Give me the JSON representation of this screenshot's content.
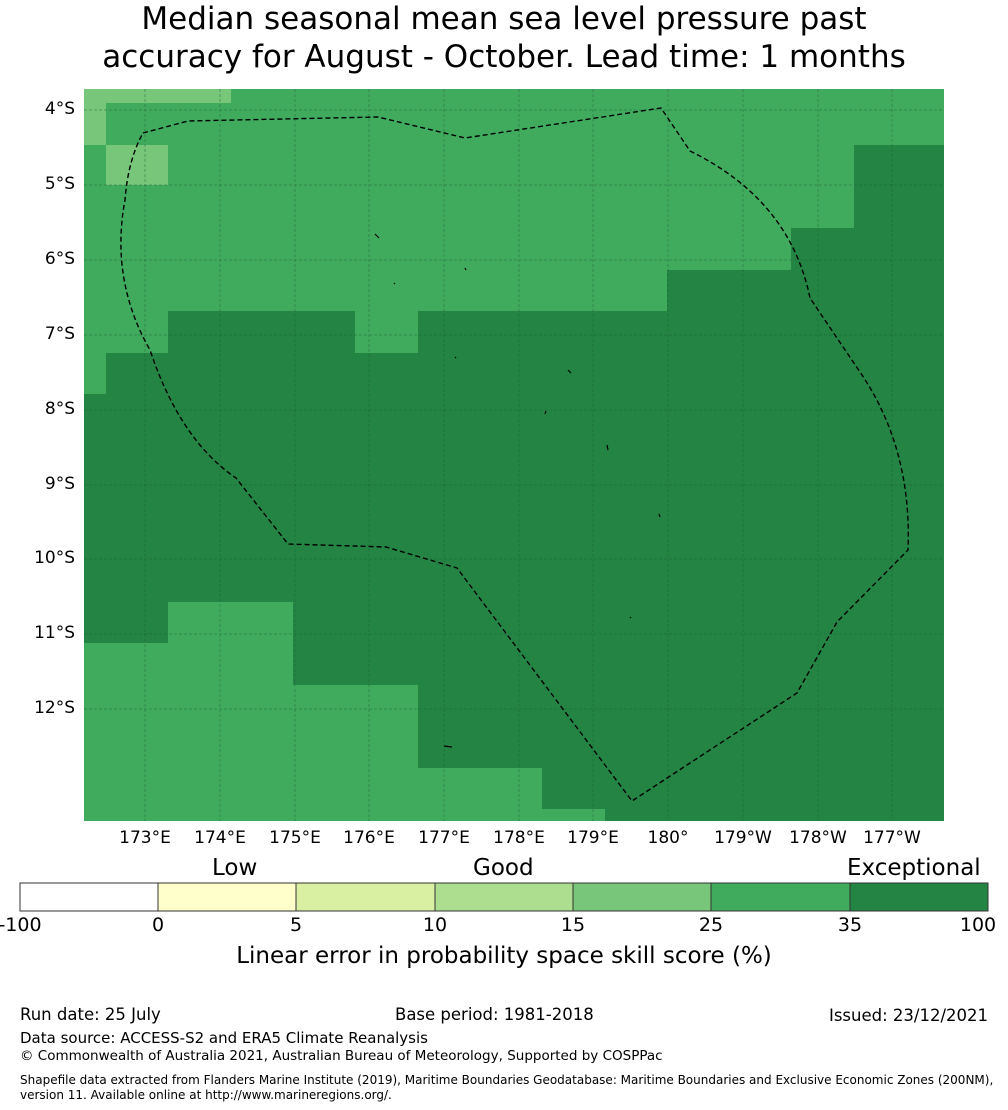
{
  "title": {
    "line1": "Median seasonal mean sea level pressure past",
    "line2": "accuracy for August - October. Lead time: 1 months"
  },
  "lat_labels": [
    "4°S",
    "5°S",
    "6°S",
    "7°S",
    "8°S",
    "9°S",
    "10°S",
    "11°S",
    "12°S"
  ],
  "lon_labels": [
    "173°E",
    "174°E",
    "175°E",
    "176°E",
    "177°E",
    "178°E",
    "179°E",
    "180°",
    "179°W",
    "178°W",
    "177°W"
  ],
  "legend": {
    "categories": [
      "Low",
      "Good",
      "Exceptional"
    ],
    "ticks": [
      "-100",
      "0",
      "5",
      "10",
      "15",
      "25",
      "35",
      "100"
    ],
    "colors": [
      "#ffffff",
      "#ffffcc",
      "#d9f0a3",
      "#addd8e",
      "#78c679",
      "#41ab5d",
      "#238443"
    ],
    "title": "Linear error in probability space skill score (%)"
  },
  "footer": {
    "run_date": "Run date: 25 July",
    "base_period": "Base period: 1981-2018",
    "issued": "Issued: 23/12/2021",
    "data_source": "Data source: ACCESS-S2 and ERA5 Climate Reanalysis",
    "copyright": "© Commonwealth of Australia 2021, Australian Bureau of Meteorology, Supported by COSPPac",
    "shapefile_line1": "Shapefile data extracted from Flanders Marine Institute (2019), Maritime Boundaries Geodatabase: Maritime Boundaries and Exclusive Economic Zones (200NM),",
    "shapefile_line2": "version 11. Available online at http://www.marineregions.org/."
  },
  "map_colors": {
    "good_light": "#78c679",
    "good": "#41ab5d",
    "exceptional": "#238443"
  }
}
